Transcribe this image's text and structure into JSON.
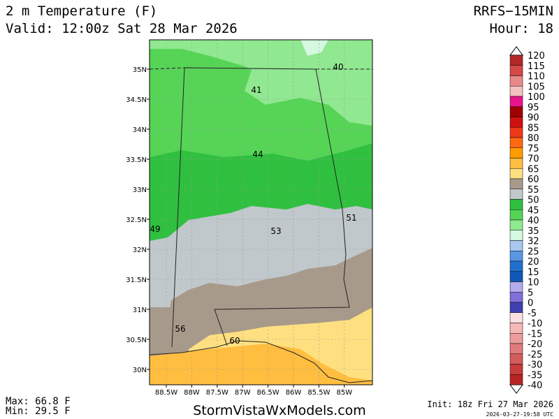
{
  "header": {
    "title": "2 m Temperature (F)",
    "valid": "Valid: 12:00z Sat 28 Mar 2026",
    "model": "RRFS−15MIN",
    "hour": "Hour: 18"
  },
  "map": {
    "lat_labels": [
      "35N",
      "34.5N",
      "34N",
      "33.5N",
      "33N",
      "32.5N",
      "32N",
      "31.5N",
      "31N",
      "30.5N",
      "30N"
    ],
    "lon_labels": [
      "88.5W",
      "88W",
      "87.5W",
      "87W",
      "86.5W",
      "86W",
      "85.5W",
      "85W"
    ],
    "contour_labels": [
      "40",
      "41",
      "44",
      "49",
      "51",
      "53",
      "56",
      "60"
    ]
  },
  "colorbar": {
    "labels": [
      "120",
      "115",
      "110",
      "105",
      "100",
      "95",
      "90",
      "85",
      "80",
      "75",
      "70",
      "65",
      "60",
      "55",
      "50",
      "45",
      "40",
      "35",
      "32",
      "25",
      "20",
      "15",
      "10",
      "5",
      "0",
      "-5",
      "-10",
      "-15",
      "-20",
      "-25",
      "-30",
      "-35",
      "-40"
    ],
    "colors": [
      "#b02828",
      "#d44848",
      "#e88888",
      "#f6c0c0",
      "#e8148c",
      "#a00000",
      "#d01010",
      "#f03818",
      "#ff6a10",
      "#ff9c00",
      "#ffbe40",
      "#ffe080",
      "#a89a8a",
      "#c0c8cc",
      "#30c040",
      "#56d456",
      "#90e890",
      "#d4f8e0",
      "#a8c8f0",
      "#5a96e2",
      "#2070d0",
      "#1058b8",
      "#b4aaec",
      "#8070d8",
      "#4040b0",
      "#fbe0e0",
      "#f4b8b8",
      "#ec9c9c",
      "#e07c7c",
      "#d45c5c",
      "#c83c3c",
      "#b82424"
    ]
  },
  "footer": {
    "max": "Max: 66.8 F",
    "min": "Min: 29.5 F",
    "site": "StormVistaWxModels.com",
    "init": "Init: 18z Fri 27 Mar 2026",
    "stamp": "2026-03-27-19:58 UTC"
  }
}
